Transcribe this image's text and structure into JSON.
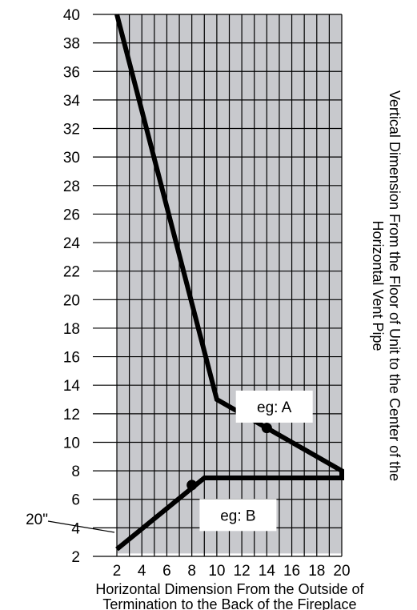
{
  "chart_data": {
    "type": "line",
    "xlabel": [
      "Horizontal Dimension From the Outside of",
      "Termination to the Back of the Fireplace"
    ],
    "ylabel": [
      "Vertical Dimension From the Floor of Unit to the Center of the",
      "Horizontal Vent Pipe"
    ],
    "xlim": [
      2,
      20
    ],
    "ylim": [
      2,
      40
    ],
    "x_ticks": [
      2,
      4,
      6,
      8,
      10,
      12,
      14,
      16,
      18,
      20
    ],
    "y_ticks": [
      2,
      4,
      6,
      8,
      10,
      12,
      14,
      16,
      18,
      20,
      22,
      24,
      26,
      28,
      30,
      32,
      34,
      36,
      38,
      40
    ],
    "grid": true,
    "shaded_region": {
      "color": "#c8c9cd",
      "polygon": [
        [
          2,
          40
        ],
        [
          20,
          40
        ],
        [
          20,
          2.2
        ],
        [
          2,
          2.2
        ]
      ]
    },
    "boundary_line": {
      "color": "#000000",
      "points": [
        [
          2,
          40
        ],
        [
          10,
          13
        ],
        [
          20,
          8
        ],
        [
          20,
          7.5
        ],
        [
          9,
          7.5
        ],
        [
          2,
          2.5
        ]
      ]
    },
    "markers": [
      {
        "x": 14,
        "y": 11
      },
      {
        "x": 8,
        "y": 7
      }
    ],
    "annotations": [
      {
        "text": "eg: A",
        "x": 14.6,
        "y": 12.5
      },
      {
        "text": "eg: B",
        "x": 11.7,
        "y": 4.9
      },
      {
        "text": "20\"",
        "x": 2,
        "y": 2.5
      }
    ]
  }
}
